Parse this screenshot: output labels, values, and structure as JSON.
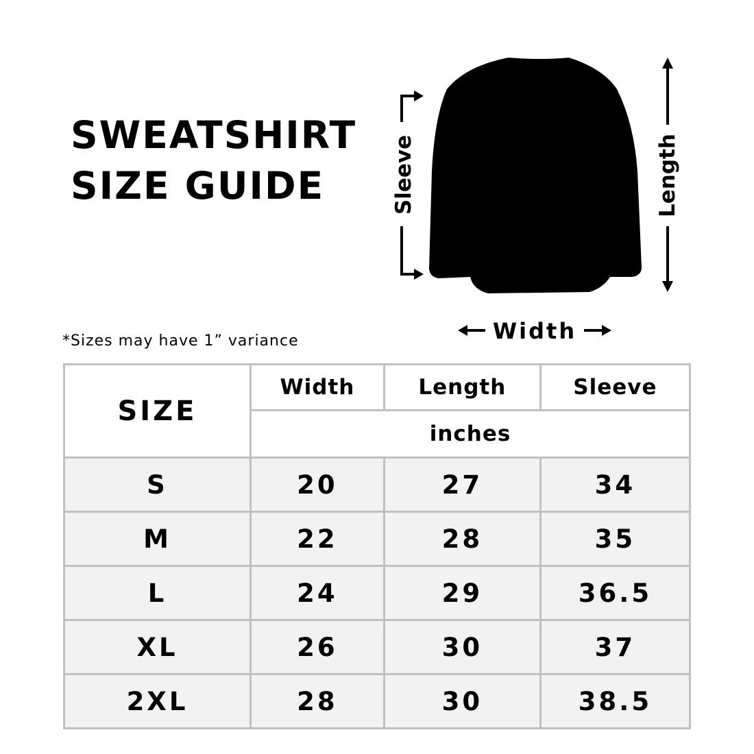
{
  "title": {
    "line1": "SWEATSHIRT",
    "line2": "SIZE GUIDE"
  },
  "note": "*Sizes may have 1” variance",
  "diagram": {
    "sleeve_label": "Sleeve",
    "length_label": "Length",
    "width_label": "Width",
    "garment_color": "#000000"
  },
  "table": {
    "size_header": "SIZE",
    "columns": [
      "Width",
      "Length",
      "Sleeve"
    ],
    "unit": "inches",
    "rows": [
      {
        "size": "S",
        "values": [
          "20",
          "27",
          "34"
        ]
      },
      {
        "size": "M",
        "values": [
          "22",
          "28",
          "35"
        ]
      },
      {
        "size": "L",
        "values": [
          "24",
          "29",
          "36.5"
        ]
      },
      {
        "size": "XL",
        "values": [
          "26",
          "30",
          "37"
        ]
      },
      {
        "size": "2XL",
        "values": [
          "28",
          "30",
          "38.5"
        ]
      }
    ],
    "border_color": "#c0c0c0",
    "row_bg": "#f2f2f2"
  }
}
